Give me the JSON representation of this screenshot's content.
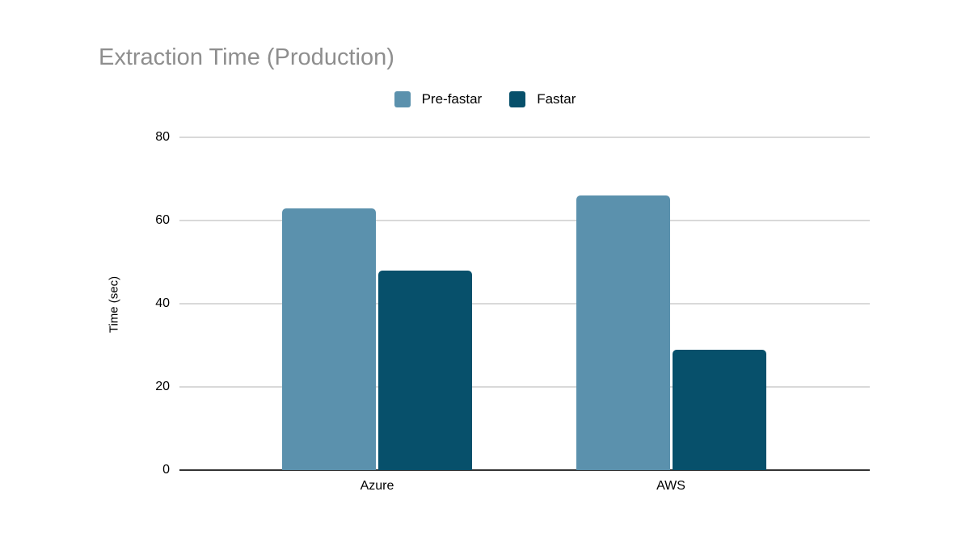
{
  "title": "Extraction Time (Production)",
  "legend": {
    "items": [
      {
        "label": "Pre-fastar",
        "color": "#5b91ad"
      },
      {
        "label": "Fastar",
        "color": "#07506b"
      }
    ]
  },
  "axes": {
    "y_title": "Time (sec)",
    "y_ticks": [
      0,
      20,
      40,
      60,
      80
    ],
    "x_labels": [
      "Azure",
      "AWS"
    ]
  },
  "colors": {
    "title_text": "#8e8e8e",
    "gridline": "#d9d9d9",
    "baseline": "#333333",
    "axis_text": "#000000",
    "background": "#ffffff",
    "series_pre_fastar": "#5b91ad",
    "series_fastar": "#07506b"
  },
  "chart_data": {
    "type": "bar",
    "title": "Extraction Time (Production)",
    "categories": [
      "Azure",
      "AWS"
    ],
    "series": [
      {
        "name": "Pre-fastar",
        "color": "#5b91ad",
        "values": [
          63,
          66
        ]
      },
      {
        "name": "Fastar",
        "color": "#07506b",
        "values": [
          48,
          29
        ]
      }
    ],
    "xlabel": "",
    "ylabel": "Time (sec)",
    "ylim": [
      0,
      80
    ],
    "yticks": [
      0,
      20,
      40,
      60,
      80
    ],
    "grid": true,
    "legend_position": "top"
  }
}
